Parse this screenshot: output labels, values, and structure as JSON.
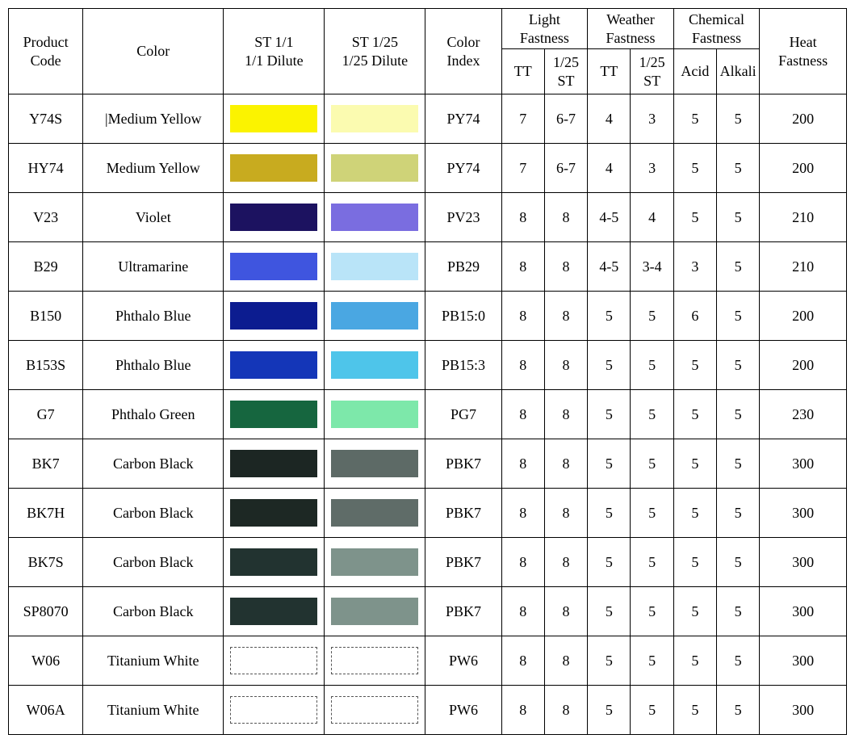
{
  "table": {
    "headers": {
      "product_code": "Product\nCode",
      "color": "Color",
      "st11": "ST 1/1\n1/1 Dilute",
      "st125": "ST 1/25\n1/25 Dilute",
      "color_index": "Color\nIndex",
      "light_fastness": "Light\nFastness",
      "weather_fastness": "Weather\nFastness",
      "chemical_fastness": "Chemical\nFastness",
      "heat_fastness": "Heat\nFastness",
      "sub_tt": "TT",
      "sub_125st": "1/25\nST",
      "sub_acid": "Acid",
      "sub_alkali": "Alkali"
    },
    "swatch_dashed_border_color": "#555555",
    "rows": [
      {
        "code": "Y74S",
        "name": "|Medium Yellow",
        "sw1": "#fbf300",
        "sw2": "#fbfbb0",
        "index": "PY74",
        "lf_tt": "7",
        "lf_125": "6-7",
        "wf_tt": "4",
        "wf_125": "3",
        "cf_acid": "5",
        "cf_alk": "5",
        "heat": "200",
        "dashed": false
      },
      {
        "code": "HY74",
        "name": "Medium Yellow",
        "sw1": "#c8ab1f",
        "sw2": "#cfd378",
        "index": "PY74",
        "lf_tt": "7",
        "lf_125": "6-7",
        "wf_tt": "4",
        "wf_125": "3",
        "cf_acid": "5",
        "cf_alk": "5",
        "heat": "200",
        "dashed": false
      },
      {
        "code": "V23",
        "name": "Violet",
        "sw1": "#1c1260",
        "sw2": "#7a6de0",
        "index": "PV23",
        "lf_tt": "8",
        "lf_125": "8",
        "wf_tt": "4-5",
        "wf_125": "4",
        "cf_acid": "5",
        "cf_alk": "5",
        "heat": "210",
        "dashed": false
      },
      {
        "code": "B29",
        "name": "Ultramarine",
        "sw1": "#3f55df",
        "sw2": "#b9e4f8",
        "index": "PB29",
        "lf_tt": "8",
        "lf_125": "8",
        "wf_tt": "4-5",
        "wf_125": "3-4",
        "cf_acid": "3",
        "cf_alk": "5",
        "heat": "210",
        "dashed": false
      },
      {
        "code": "B150",
        "name": "Phthalo Blue",
        "sw1": "#0c1c90",
        "sw2": "#4aa7e2",
        "index": "PB15:0",
        "lf_tt": "8",
        "lf_125": "8",
        "wf_tt": "5",
        "wf_125": "5",
        "cf_acid": "6",
        "cf_alk": "5",
        "heat": "200",
        "dashed": false
      },
      {
        "code": "B153S",
        "name": "Phthalo Blue",
        "sw1": "#1436b8",
        "sw2": "#4ec5ea",
        "index": "PB15:3",
        "lf_tt": "8",
        "lf_125": "8",
        "wf_tt": "5",
        "wf_125": "5",
        "cf_acid": "5",
        "cf_alk": "5",
        "heat": "200",
        "dashed": false
      },
      {
        "code": "G7",
        "name": "Phthalo Green",
        "sw1": "#16663f",
        "sw2": "#7de8aa",
        "index": "PG7",
        "lf_tt": "8",
        "lf_125": "8",
        "wf_tt": "5",
        "wf_125": "5",
        "cf_acid": "5",
        "cf_alk": "5",
        "heat": "230",
        "dashed": false
      },
      {
        "code": "BK7",
        "name": "Carbon Black",
        "sw1": "#1c2623",
        "sw2": "#5d6a66",
        "index": "PBK7",
        "lf_tt": "8",
        "lf_125": "8",
        "wf_tt": "5",
        "wf_125": "5",
        "cf_acid": "5",
        "cf_alk": "5",
        "heat": "300",
        "dashed": false
      },
      {
        "code": "BK7H",
        "name": "Carbon Black",
        "sw1": "#1d2824",
        "sw2": "#5f6c68",
        "index": "PBK7",
        "lf_tt": "8",
        "lf_125": "8",
        "wf_tt": "5",
        "wf_125": "5",
        "cf_acid": "5",
        "cf_alk": "5",
        "heat": "300",
        "dashed": false
      },
      {
        "code": "BK7S",
        "name": "Carbon Black",
        "sw1": "#223330",
        "sw2": "#7e938b",
        "index": "PBK7",
        "lf_tt": "8",
        "lf_125": "8",
        "wf_tt": "5",
        "wf_125": "5",
        "cf_acid": "5",
        "cf_alk": "5",
        "heat": "300",
        "dashed": false
      },
      {
        "code": "SP8070",
        "name": "Carbon Black",
        "sw1": "#223330",
        "sw2": "#7e938b",
        "index": "PBK7",
        "lf_tt": "8",
        "lf_125": "8",
        "wf_tt": "5",
        "wf_125": "5",
        "cf_acid": "5",
        "cf_alk": "5",
        "heat": "300",
        "dashed": false
      },
      {
        "code": "W06",
        "name": "Titanium White",
        "sw1": "#ffffff",
        "sw2": "#ffffff",
        "index": "PW6",
        "lf_tt": "8",
        "lf_125": "8",
        "wf_tt": "5",
        "wf_125": "5",
        "cf_acid": "5",
        "cf_alk": "5",
        "heat": "300",
        "dashed": true
      },
      {
        "code": "W06A",
        "name": "Titanium White",
        "sw1": "#ffffff",
        "sw2": "#ffffff",
        "index": "PW6",
        "lf_tt": "8",
        "lf_125": "8",
        "wf_tt": "5",
        "wf_125": "5",
        "cf_acid": "5",
        "cf_alk": "5",
        "heat": "300",
        "dashed": true
      }
    ]
  }
}
